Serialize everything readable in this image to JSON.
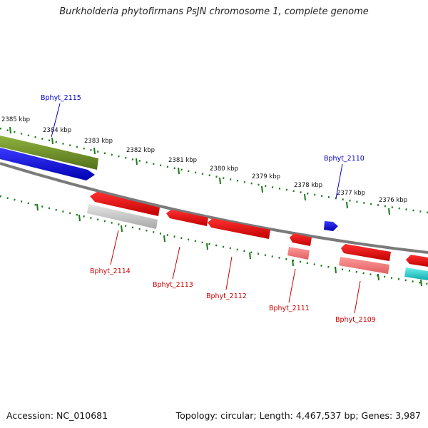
{
  "title": "Burkholderia phytofirmans PsJN chromosome 1, complete genome",
  "footer": {
    "accession": "Accession: NC_010681",
    "summary": "Topology: circular; Length: 4,467,537 bp; Genes: 3,987"
  },
  "scale_labels": [
    "2385 kbp",
    "2384 kbp",
    "2383 kbp",
    "2382 kbp",
    "2381 kbp",
    "2380 kbp",
    "2379 kbp",
    "2378 kbp",
    "2377 kbp",
    "2376 kbp"
  ],
  "genes": [
    {
      "label": "Bphyt_2115",
      "strand": "forward"
    },
    {
      "label": "Bphyt_2110",
      "strand": "forward"
    },
    {
      "label": "Bphyt_2114",
      "strand": "reverse"
    },
    {
      "label": "Bphyt_2113",
      "strand": "reverse"
    },
    {
      "label": "Bphyt_2112",
      "strand": "reverse"
    },
    {
      "label": "Bphyt_2111",
      "strand": "reverse"
    },
    {
      "label": "Bphyt_2109",
      "strand": "reverse"
    }
  ],
  "colors": {
    "forward_label": "#0000cc",
    "reverse_label": "#cc0000",
    "tick": "#1a7a1a",
    "backbone": "#808080",
    "forward_gene": "#0000ee",
    "reverse_gene": "#ee0000",
    "olive_feature": "#6b8e23",
    "cyan_feature": "#20c8c8"
  }
}
